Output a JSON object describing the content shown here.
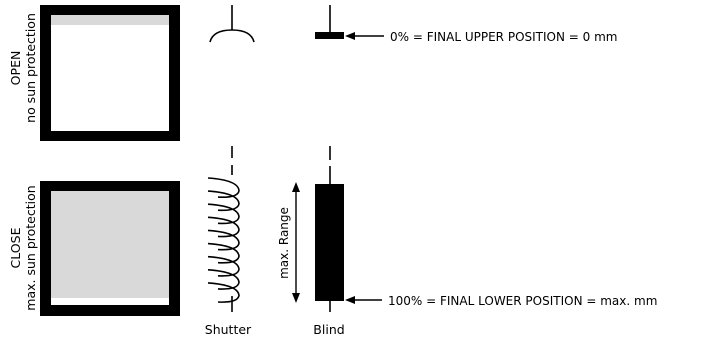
{
  "open_state": {
    "title": "OPEN",
    "subtitle": "no sun protection"
  },
  "close_state": {
    "title": "CLOSE",
    "subtitle": "max. sun protection"
  },
  "labels": {
    "upper_position": "0% = FINAL UPPER POSITION = 0 mm",
    "lower_position": "100% = FINAL LOWER POSITION = max. mm",
    "range": "max. Range",
    "shutter": "Shutter",
    "blind": "Blind"
  },
  "colors": {
    "frame": "#000000",
    "shade": "#d9d9d9",
    "glass": "#ffffff"
  }
}
